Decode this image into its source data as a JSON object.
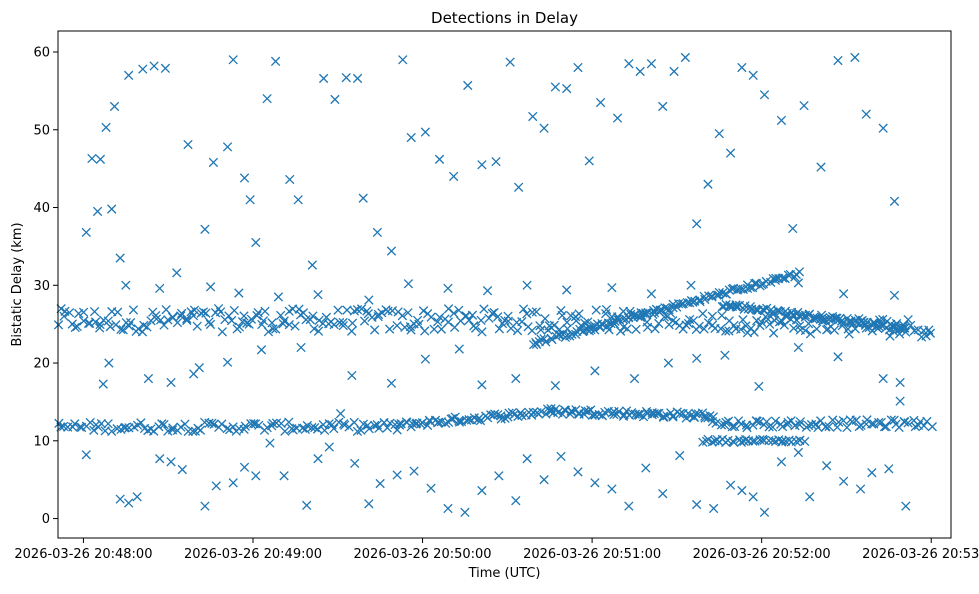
{
  "chart_data": {
    "type": "scatter",
    "title": "Detections in Delay",
    "xlabel": "Time (UTC)",
    "ylabel": "Bistatic Delay (km)",
    "marker": "x",
    "color": "#1f77b4",
    "xlim": [
      "2026-03-26 20:47:51",
      "2026-03-26 20:53:07"
    ],
    "ylim": [
      -2.5,
      62.7
    ],
    "xticks": [
      {
        "label": "2026-03-26 20:48:00",
        "sec": 9
      },
      {
        "label": "2026-03-26 20:49:00",
        "sec": 69
      },
      {
        "label": "2026-03-26 20:50:00",
        "sec": 129
      },
      {
        "label": "2026-03-26 20:51:00",
        "sec": 189
      },
      {
        "label": "2026-03-26 20:52:00",
        "sec": 249
      },
      {
        "label": "2026-03-26 20:53:00",
        "sec": 309
      }
    ],
    "yticks": [
      0,
      10,
      20,
      30,
      40,
      50,
      60
    ],
    "x_unit": "seconds since 2026-03-26 20:47:51",
    "tracks": [
      {
        "name": "upper-track",
        "x": [
          0,
          200
        ],
        "y": [
          25.5,
          25.5
        ],
        "spread": 1.5,
        "n": 210
      },
      {
        "name": "lower-track",
        "x": [
          0,
          120
        ],
        "y": [
          11.8,
          11.8
        ],
        "spread": 0.6,
        "n": 100
      },
      {
        "name": "lower-track-rise",
        "x": [
          120,
          175
        ],
        "y": [
          12.0,
          13.8
        ],
        "spread": 0.4,
        "n": 60
      },
      {
        "name": "lower-track-mid",
        "x": [
          175,
          232
        ],
        "y": [
          13.8,
          13.2
        ],
        "spread": 0.4,
        "n": 70
      },
      {
        "name": "ramp-up",
        "x": [
          168,
          262
        ],
        "y": [
          22.5,
          31.5
        ],
        "spread": 0.3,
        "n": 110
      },
      {
        "name": "ramp-down",
        "x": [
          235,
          300
        ],
        "y": [
          27.5,
          24.5
        ],
        "spread": 0.3,
        "n": 90
      },
      {
        "name": "upper-late",
        "x": [
          200,
          309
        ],
        "y": [
          25.5,
          24.5
        ],
        "spread": 1.2,
        "n": 110
      },
      {
        "name": "lower-late",
        "x": [
          232,
          309
        ],
        "y": [
          12.2,
          12.2
        ],
        "spread": 0.5,
        "n": 70
      },
      {
        "name": "cluster-10",
        "x": [
          228,
          264
        ],
        "y": [
          10.0,
          10.0
        ],
        "spread": 0.2,
        "n": 35
      }
    ],
    "scatter_noise": [
      [
        10,
        36.8
      ],
      [
        12,
        46.3
      ],
      [
        14,
        39.5
      ],
      [
        15,
        46.2
      ],
      [
        17,
        50.3
      ],
      [
        19,
        39.8
      ],
      [
        20,
        53.0
      ],
      [
        22,
        33.5
      ],
      [
        25,
        57.0
      ],
      [
        30,
        57.8
      ],
      [
        34,
        58.2
      ],
      [
        38,
        57.9
      ],
      [
        42,
        31.6
      ],
      [
        46,
        48.1
      ],
      [
        52,
        37.2
      ],
      [
        55,
        45.8
      ],
      [
        60,
        47.8
      ],
      [
        62,
        59.0
      ],
      [
        66,
        43.8
      ],
      [
        68,
        41.0
      ],
      [
        70,
        35.5
      ],
      [
        74,
        54.0
      ],
      [
        77,
        58.8
      ],
      [
        82,
        43.6
      ],
      [
        85,
        41.0
      ],
      [
        90,
        32.6
      ],
      [
        94,
        56.6
      ],
      [
        98,
        53.9
      ],
      [
        102,
        56.7
      ],
      [
        106,
        56.6
      ],
      [
        108,
        41.2
      ],
      [
        113,
        36.8
      ],
      [
        118,
        34.4
      ],
      [
        122,
        59.0
      ],
      [
        125,
        49.0
      ],
      [
        130,
        49.7
      ],
      [
        135,
        46.2
      ],
      [
        140,
        44.0
      ],
      [
        145,
        55.7
      ],
      [
        150,
        45.5
      ],
      [
        155,
        45.9
      ],
      [
        160,
        58.7
      ],
      [
        163,
        42.6
      ],
      [
        168,
        51.7
      ],
      [
        172,
        50.2
      ],
      [
        176,
        55.5
      ],
      [
        180,
        55.3
      ],
      [
        184,
        58.0
      ],
      [
        188,
        46.0
      ],
      [
        192,
        53.5
      ],
      [
        198,
        51.5
      ],
      [
        202,
        58.5
      ],
      [
        206,
        57.5
      ],
      [
        210,
        58.5
      ],
      [
        214,
        53.0
      ],
      [
        218,
        57.5
      ],
      [
        222,
        59.3
      ],
      [
        226,
        37.9
      ],
      [
        230,
        43.0
      ],
      [
        234,
        49.5
      ],
      [
        238,
        47.0
      ],
      [
        242,
        58.0
      ],
      [
        246,
        57.0
      ],
      [
        250,
        54.5
      ],
      [
        256,
        51.2
      ],
      [
        260,
        37.3
      ],
      [
        264,
        53.1
      ],
      [
        270,
        45.2
      ],
      [
        276,
        58.9
      ],
      [
        282,
        59.3
      ],
      [
        286,
        52.0
      ],
      [
        292,
        50.2
      ],
      [
        296,
        40.8
      ],
      [
        10,
        8.2
      ],
      [
        16,
        17.3
      ],
      [
        22,
        2.5
      ],
      [
        25,
        2.0
      ],
      [
        28,
        2.8
      ],
      [
        32,
        18.0
      ],
      [
        36,
        7.7
      ],
      [
        40,
        7.3
      ],
      [
        44,
        6.3
      ],
      [
        48,
        18.6
      ],
      [
        52,
        1.6
      ],
      [
        56,
        4.2
      ],
      [
        62,
        4.6
      ],
      [
        66,
        6.6
      ],
      [
        70,
        5.5
      ],
      [
        75,
        9.7
      ],
      [
        80,
        5.5
      ],
      [
        88,
        1.7
      ],
      [
        92,
        7.7
      ],
      [
        96,
        9.2
      ],
      [
        100,
        13.5
      ],
      [
        105,
        7.1
      ],
      [
        110,
        1.9
      ],
      [
        114,
        4.5
      ],
      [
        120,
        5.6
      ],
      [
        126,
        6.1
      ],
      [
        132,
        3.9
      ],
      [
        138,
        1.3
      ],
      [
        144,
        0.8
      ],
      [
        150,
        3.6
      ],
      [
        156,
        5.5
      ],
      [
        162,
        2.3
      ],
      [
        166,
        7.7
      ],
      [
        172,
        5.0
      ],
      [
        178,
        8.0
      ],
      [
        184,
        6.0
      ],
      [
        190,
        4.6
      ],
      [
        196,
        3.8
      ],
      [
        202,
        1.6
      ],
      [
        208,
        6.5
      ],
      [
        214,
        3.2
      ],
      [
        220,
        8.1
      ],
      [
        226,
        1.8
      ],
      [
        232,
        1.3
      ],
      [
        238,
        4.3
      ],
      [
        242,
        3.6
      ],
      [
        246,
        2.8
      ],
      [
        250,
        0.8
      ],
      [
        256,
        7.3
      ],
      [
        262,
        8.5
      ],
      [
        266,
        2.8
      ],
      [
        272,
        6.8
      ],
      [
        278,
        4.8
      ],
      [
        284,
        3.8
      ],
      [
        288,
        5.9
      ],
      [
        294,
        6.4
      ],
      [
        298,
        15.1
      ],
      [
        300,
        1.6
      ],
      [
        18,
        20.0
      ],
      [
        40,
        17.5
      ],
      [
        50,
        19.4
      ],
      [
        60,
        20.1
      ],
      [
        72,
        21.7
      ],
      [
        86,
        22.0
      ],
      [
        104,
        18.4
      ],
      [
        118,
        17.4
      ],
      [
        130,
        20.5
      ],
      [
        142,
        21.8
      ],
      [
        150,
        17.2
      ],
      [
        162,
        18.0
      ],
      [
        176,
        17.1
      ],
      [
        190,
        19.0
      ],
      [
        204,
        18.0
      ],
      [
        216,
        20.0
      ],
      [
        226,
        20.6
      ],
      [
        236,
        21.0
      ],
      [
        248,
        17.0
      ],
      [
        262,
        22.0
      ],
      [
        276,
        20.8
      ],
      [
        292,
        18.0
      ],
      [
        298,
        17.5
      ],
      [
        24,
        30.0
      ],
      [
        36,
        29.6
      ],
      [
        54,
        29.8
      ],
      [
        64,
        29.0
      ],
      [
        78,
        28.5
      ],
      [
        92,
        28.8
      ],
      [
        110,
        28.1
      ],
      [
        124,
        30.2
      ],
      [
        138,
        29.6
      ],
      [
        152,
        29.3
      ],
      [
        166,
        30.0
      ],
      [
        180,
        29.4
      ],
      [
        196,
        29.7
      ],
      [
        210,
        28.9
      ],
      [
        224,
        30.0
      ],
      [
        244,
        29.6
      ],
      [
        262,
        30.3
      ],
      [
        278,
        28.9
      ],
      [
        296,
        28.7
      ]
    ]
  }
}
